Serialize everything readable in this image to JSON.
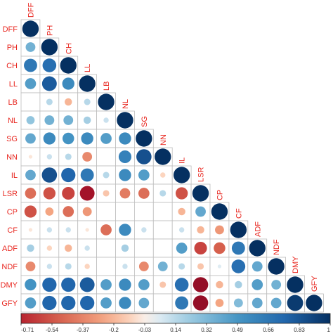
{
  "chart_data": {
    "type": "heatmap",
    "subtype": "correlation-circles-lower-triangle",
    "title": "",
    "variables": [
      "DFF",
      "PH",
      "CH",
      "LL",
      "LB",
      "NL",
      "SG",
      "NN",
      "IL",
      "LSR",
      "CP",
      "CF",
      "ADF",
      "NDF",
      "DMY",
      "GFY"
    ],
    "matrix": [
      [
        1.0
      ],
      [
        0.35,
        1.0
      ],
      [
        0.65,
        0.7,
        1.0
      ],
      [
        0.45,
        0.8,
        0.55,
        1.0
      ],
      [
        0.0,
        0.15,
        -0.2,
        0.15,
        1.0
      ],
      [
        0.25,
        0.35,
        0.35,
        0.2,
        0.1,
        1.0
      ],
      [
        0.4,
        0.55,
        0.5,
        0.55,
        0.45,
        0.55,
        1.0
      ],
      [
        -0.05,
        0.1,
        0.15,
        -0.35,
        0.0,
        0.6,
        0.85,
        1.0
      ],
      [
        0.4,
        0.85,
        0.75,
        0.65,
        0.15,
        0.55,
        0.45,
        -0.1,
        1.0
      ],
      [
        -0.45,
        -0.55,
        -0.6,
        -0.8,
        -0.15,
        -0.4,
        -0.45,
        0.15,
        -0.55,
        1.0
      ],
      [
        -0.55,
        -0.25,
        -0.45,
        -0.3,
        0.0,
        0.0,
        0.0,
        0.0,
        -0.2,
        0.4,
        1.0
      ],
      [
        -0.05,
        0.1,
        0.1,
        -0.05,
        -0.45,
        0.55,
        0.1,
        0.0,
        0.1,
        -0.2,
        -0.3,
        1.0
      ],
      [
        0.2,
        -0.1,
        -0.2,
        0.1,
        0.0,
        0.2,
        0.0,
        0.0,
        0.45,
        -0.6,
        -0.5,
        0.65,
        1.0
      ],
      [
        -0.35,
        0.1,
        0.15,
        -0.1,
        0.0,
        0.1,
        -0.35,
        0.35,
        0.15,
        -0.15,
        0.05,
        0.7,
        0.4,
        1.0
      ],
      [
        0.5,
        0.75,
        0.75,
        0.8,
        0.45,
        0.55,
        0.45,
        -0.15,
        0.7,
        -0.85,
        -0.2,
        0.2,
        0.45,
        0.35,
        1.0
      ],
      [
        0.45,
        0.75,
        0.75,
        0.75,
        0.45,
        0.55,
        0.4,
        0.0,
        0.65,
        -0.85,
        -0.25,
        0.3,
        0.4,
        0.4,
        0.95,
        1.0
      ]
    ],
    "colorbar": {
      "min": -0.71,
      "max": 1,
      "tick_labels": [
        "-0.71",
        "-0.54",
        "-0.37",
        "-0.2",
        "-0.03",
        "0.14",
        "0.32",
        "0.49",
        "0.66",
        "0.83",
        "1"
      ],
      "colors": {
        "negative": "#b2182b",
        "neutral": "#f7f7f7",
        "positive": "#053061"
      }
    },
    "label_color": "#e8251e"
  }
}
